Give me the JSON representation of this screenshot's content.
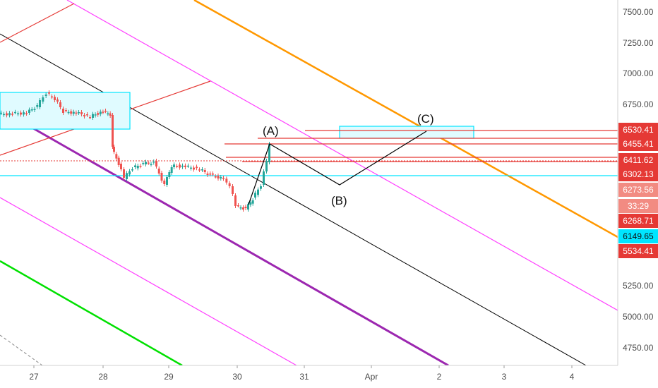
{
  "chart_data": {
    "type": "candlestick",
    "y_axis": {
      "range": [
        4600,
        7600
      ],
      "ticks": [
        "7500.00",
        "7250.00",
        "7000.00",
        "6750.00",
        "5250.00",
        "5000.00",
        "4750.00"
      ],
      "tick_values": [
        7500,
        7250,
        7000,
        6750,
        5250,
        5000,
        4750
      ]
    },
    "x_axis": {
      "ticks": [
        "27",
        "28",
        "29",
        "30",
        "31",
        "Apr",
        "2",
        "3",
        "4"
      ],
      "tick_days": [
        27,
        28,
        29,
        30,
        31,
        32,
        33,
        34,
        35
      ]
    },
    "price_labels": [
      {
        "text": "6530.41",
        "color": "#e53935",
        "level": 6530
      },
      {
        "text": "6455.41",
        "color": "#e53935",
        "level": 6455
      },
      {
        "text": "6411.62",
        "color": "#e53935",
        "level": 6412
      },
      {
        "text": "6302.13",
        "color": "#e53935",
        "level": 6302
      },
      {
        "text": "6273.56",
        "color": "#f28b82",
        "level": 6274
      },
      {
        "text": "33:29",
        "color": "#f28b82",
        "level": 6226
      },
      {
        "text": "6268.71",
        "color": "#e53935",
        "level": 6269
      },
      {
        "text": "6149.65",
        "color": "#00e5ff",
        "level": 6150
      },
      {
        "text": "5534.41",
        "color": "#e53935",
        "level": 5534
      }
    ],
    "wave_labels": [
      {
        "text": "(A)",
        "day": 30.45,
        "price": 6560
      },
      {
        "text": "(B)",
        "day": 31.55,
        "price": 6150
      },
      {
        "text": "(C)",
        "day": 32.85,
        "price": 6610
      }
    ],
    "colors": {
      "up": "#26a69a",
      "down": "#ef5350",
      "channel": "#e91e63",
      "magenta": "#ff40ff",
      "orange": "#ff9800",
      "purple": "#9c27b0",
      "green": "#00e000",
      "cyan": "#00e5ff",
      "red": "#e53935",
      "black": "#000000"
    }
  }
}
